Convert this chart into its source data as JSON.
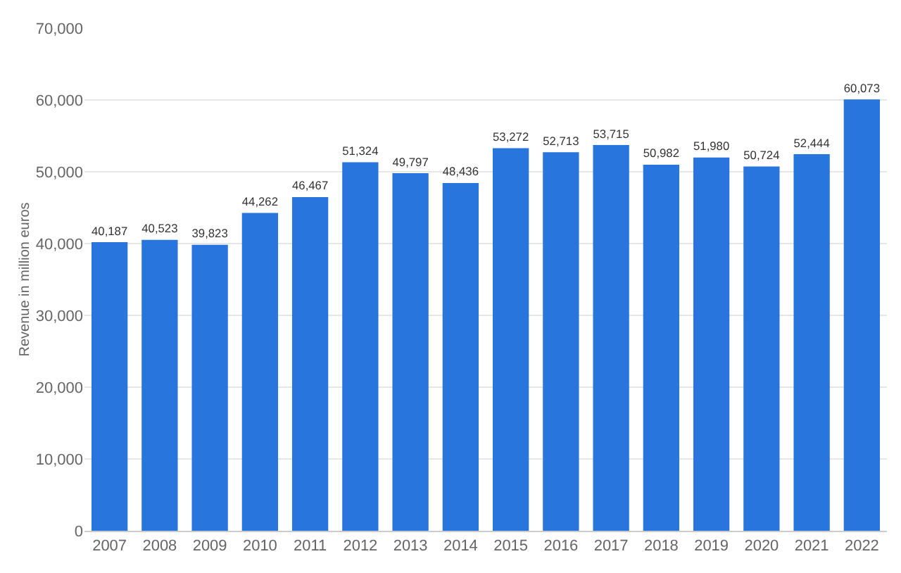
{
  "chart_data": {
    "type": "bar",
    "categories": [
      "2007",
      "2008",
      "2009",
      "2010",
      "2011",
      "2012",
      "2013",
      "2014",
      "2015",
      "2016",
      "2017",
      "2018",
      "2019",
      "2020",
      "2021",
      "2022"
    ],
    "values": [
      40187,
      40523,
      39823,
      44262,
      46467,
      51324,
      49797,
      48436,
      53272,
      52713,
      53715,
      50982,
      51980,
      50724,
      52444,
      60073
    ],
    "color": "#2876dd",
    "ylabel": "Revenue in million euros",
    "ylim": [
      0,
      70000
    ],
    "yticks": [
      {
        "value": 0,
        "label": "0"
      },
      {
        "value": 10000,
        "label": "10,000"
      },
      {
        "value": 20000,
        "label": "20,000"
      },
      {
        "value": 30000,
        "label": "30,000"
      },
      {
        "value": 40000,
        "label": "40,000"
      },
      {
        "value": 50000,
        "label": "50,000"
      },
      {
        "value": 60000,
        "label": "60,000"
      },
      {
        "value": 70000,
        "label": "70,000"
      }
    ],
    "grid": "y",
    "value_labels": [
      "40,187",
      "40,523",
      "39,823",
      "44,262",
      "46,467",
      "51,324",
      "49,797",
      "48,436",
      "53,272",
      "52,713",
      "53,715",
      "50,982",
      "51,980",
      "50,724",
      "52,444",
      "60,073"
    ]
  }
}
